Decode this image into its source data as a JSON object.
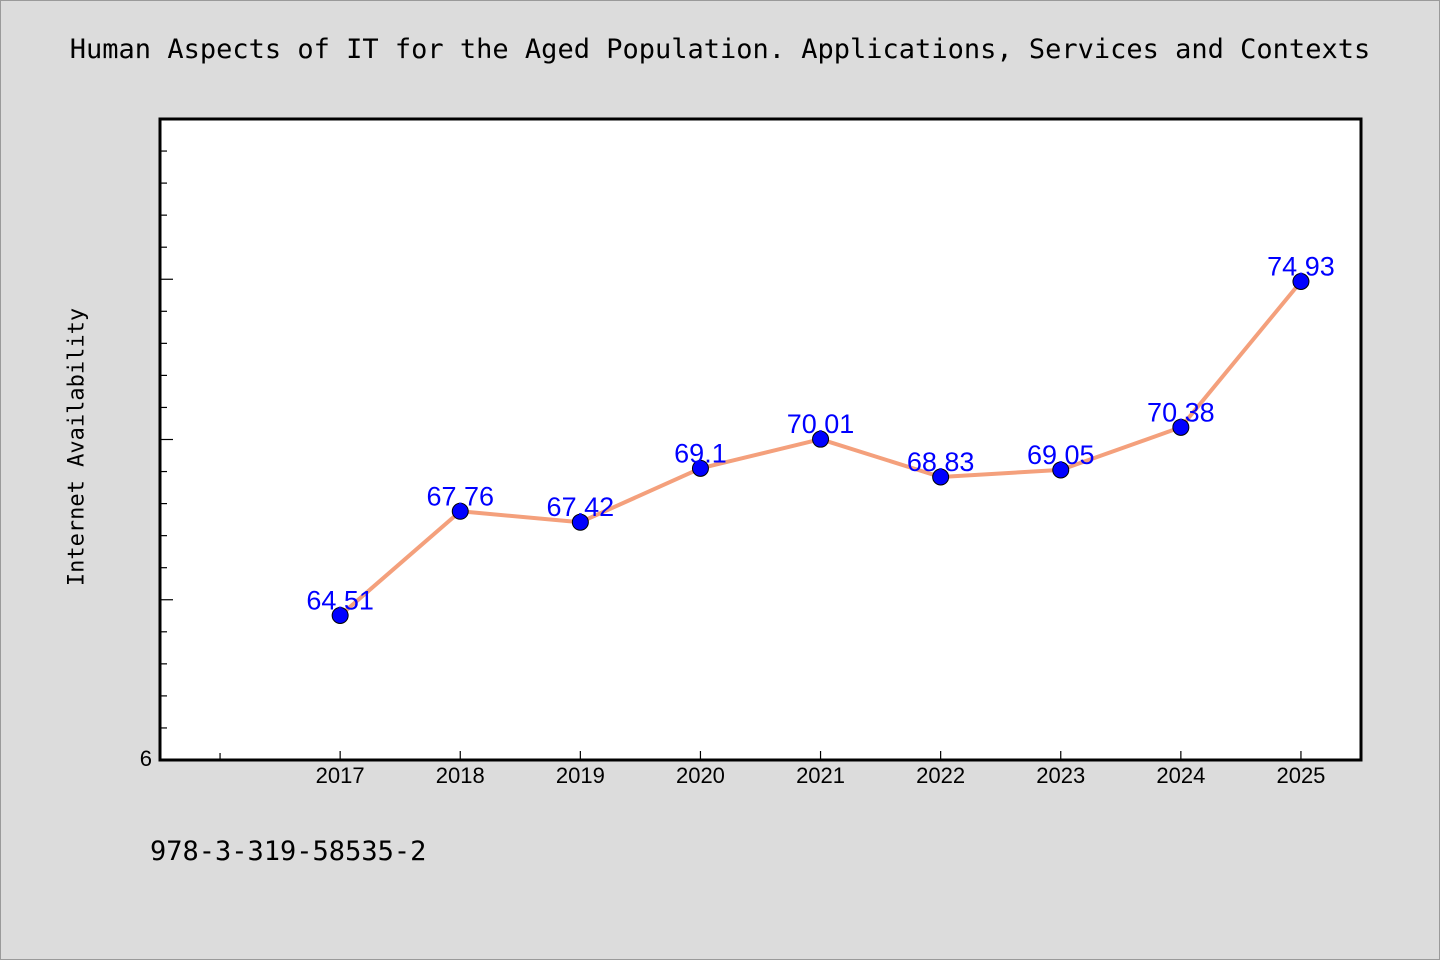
{
  "chart_data": {
    "type": "line",
    "title": "Human Aspects of IT for the Aged Population. Applications, Services and Contexts",
    "xlabel": "",
    "ylabel": "Internet Availability",
    "x": [
      "2017",
      "2018",
      "2019",
      "2020",
      "2021",
      "2022",
      "2023",
      "2024",
      "2025"
    ],
    "series": [
      {
        "name": "",
        "values": [
          64.51,
          67.76,
          67.42,
          69.1,
          70.01,
          68.83,
          69.05,
          70.38,
          74.93
        ],
        "labels": [
          "64.51",
          "67.76",
          "67.42",
          "69.1",
          "70.01",
          "68.83",
          "69.05",
          "70.38",
          "74.93"
        ]
      }
    ],
    "ylim": [
      60,
      80
    ],
    "y_tick_labels": [
      "6"
    ],
    "grid": false,
    "line_color": "#f4a07c",
    "marker_color": "#0000ff",
    "label_color": "#0000ff"
  },
  "footer": {
    "code": "978-3-319-58535-2"
  }
}
